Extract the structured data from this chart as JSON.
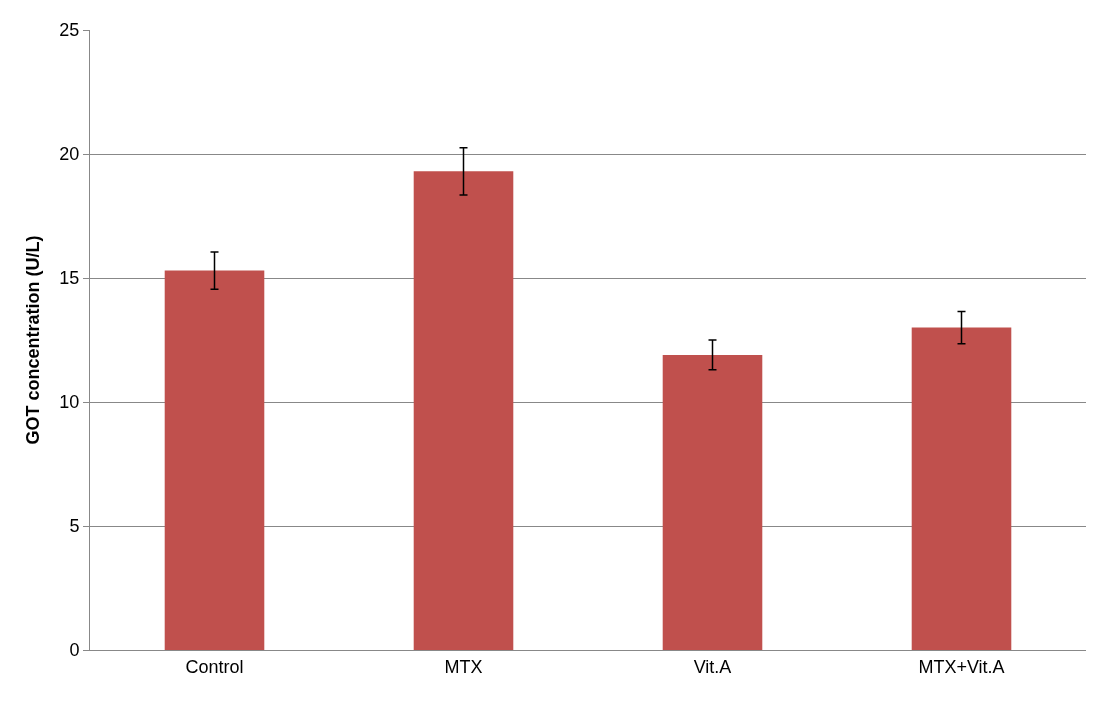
{
  "chart_data": {
    "type": "bar",
    "ylabel": "GOT concentration (U/L)",
    "categories": [
      "Control",
      "MTX",
      "Vit.A",
      "MTX+Vit.A"
    ],
    "values": [
      15.3,
      19.3,
      11.9,
      13.0
    ],
    "errors": [
      0.75,
      0.95,
      0.6,
      0.65
    ],
    "color": "#c0504d",
    "ylim": [
      0,
      25
    ],
    "yticks": [
      0,
      5,
      10,
      15,
      20,
      25
    ],
    "grid": "y",
    "legend": false
  }
}
